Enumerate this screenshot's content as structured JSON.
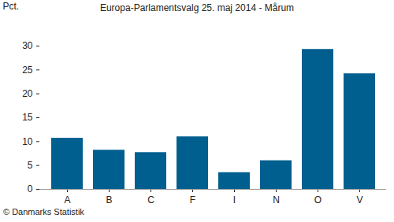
{
  "chart_data": {
    "type": "bar",
    "title": "Europa-Parlamentsvalg 25. maj 2014 - Mårum",
    "y_label": "Pct.",
    "categories": [
      "A",
      "B",
      "C",
      "F",
      "I",
      "N",
      "O",
      "V"
    ],
    "values": [
      10.7,
      8.2,
      7.7,
      11.0,
      3.5,
      6.0,
      29.3,
      24.2
    ],
    "color": "#005f8f",
    "ylim": [
      0,
      30
    ],
    "yticks": [
      0,
      5,
      10,
      15,
      20,
      25,
      30
    ],
    "grid": false,
    "annotations": [
      "© Danmarks Statistik"
    ]
  }
}
